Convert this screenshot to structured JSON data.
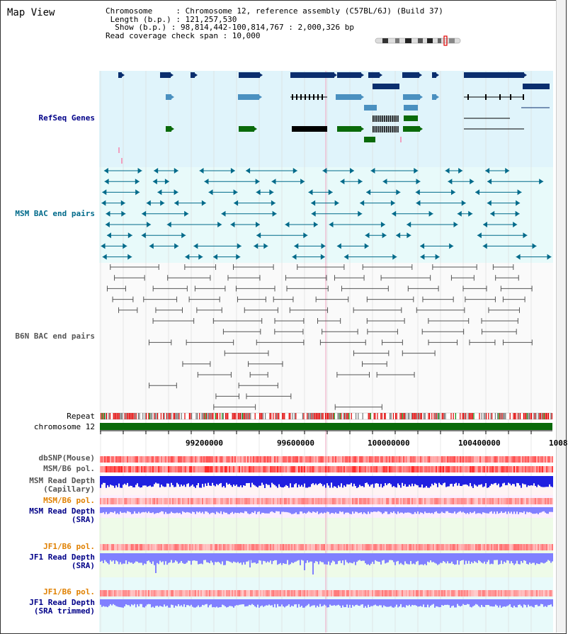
{
  "header": {
    "map_title": "Map View",
    "chromosome_line": "Chromosome     : Chromosome 12, reference assembly (C57BL/6J) (Build 37)",
    "length_line": " Length (b.p.) : 121,257,530",
    "show_line": "  Show (b.p.) : 98,814,442-100,814,767 : 2,000,326 bp",
    "coverage_line": "Read coverage check span : 10,000"
  },
  "tracks": {
    "refseq": "RefSeq Genes",
    "msm_bac": "MSM BAC end pairs",
    "b6n_bac": "B6N BAC end pairs",
    "repeat": "Repeat",
    "chromosome": "chromosome 12",
    "dbsnp": "dbSNP(Mouse)",
    "msm_b6_pol": "MSM/B6 pol.",
    "msm_depth_cap": "MSM Read Depth\n(Capillary)",
    "msm_b6_pol_sra": "MSM/B6 pol.",
    "msm_depth_sra": "MSM Read Depth\n(SRA)",
    "jf1_b6_pol": "JF1/B6 pol.",
    "jf1_depth_sra": "JF1 Read Depth\n(SRA)",
    "jf1_b6_pol_trim": "JF1/B6 pol.",
    "jf1_depth_trim": "JF1 Read Depth\n(SRA trimmed)"
  },
  "ruler": {
    "ticks": [
      "99200000",
      "99600000",
      "100000000",
      "100400000",
      "1008"
    ]
  },
  "colors": {
    "refseq_bg": "#e0f4fb",
    "msm_bg": "#e8fafa",
    "gene_dark": "#0a2e6e",
    "gene_mid": "#4a90c0",
    "gene_green": "#0a6a0a",
    "msm_line": "#006a8a",
    "b6n_line": "#555555",
    "pol_red": "#f03030",
    "depth_blue": "#2020e0",
    "depth_light": "#8080ff",
    "label_blue": "#000088",
    "label_teal": "#006a8a",
    "label_orange": "#e08000",
    "label_gray": "#555555"
  }
}
